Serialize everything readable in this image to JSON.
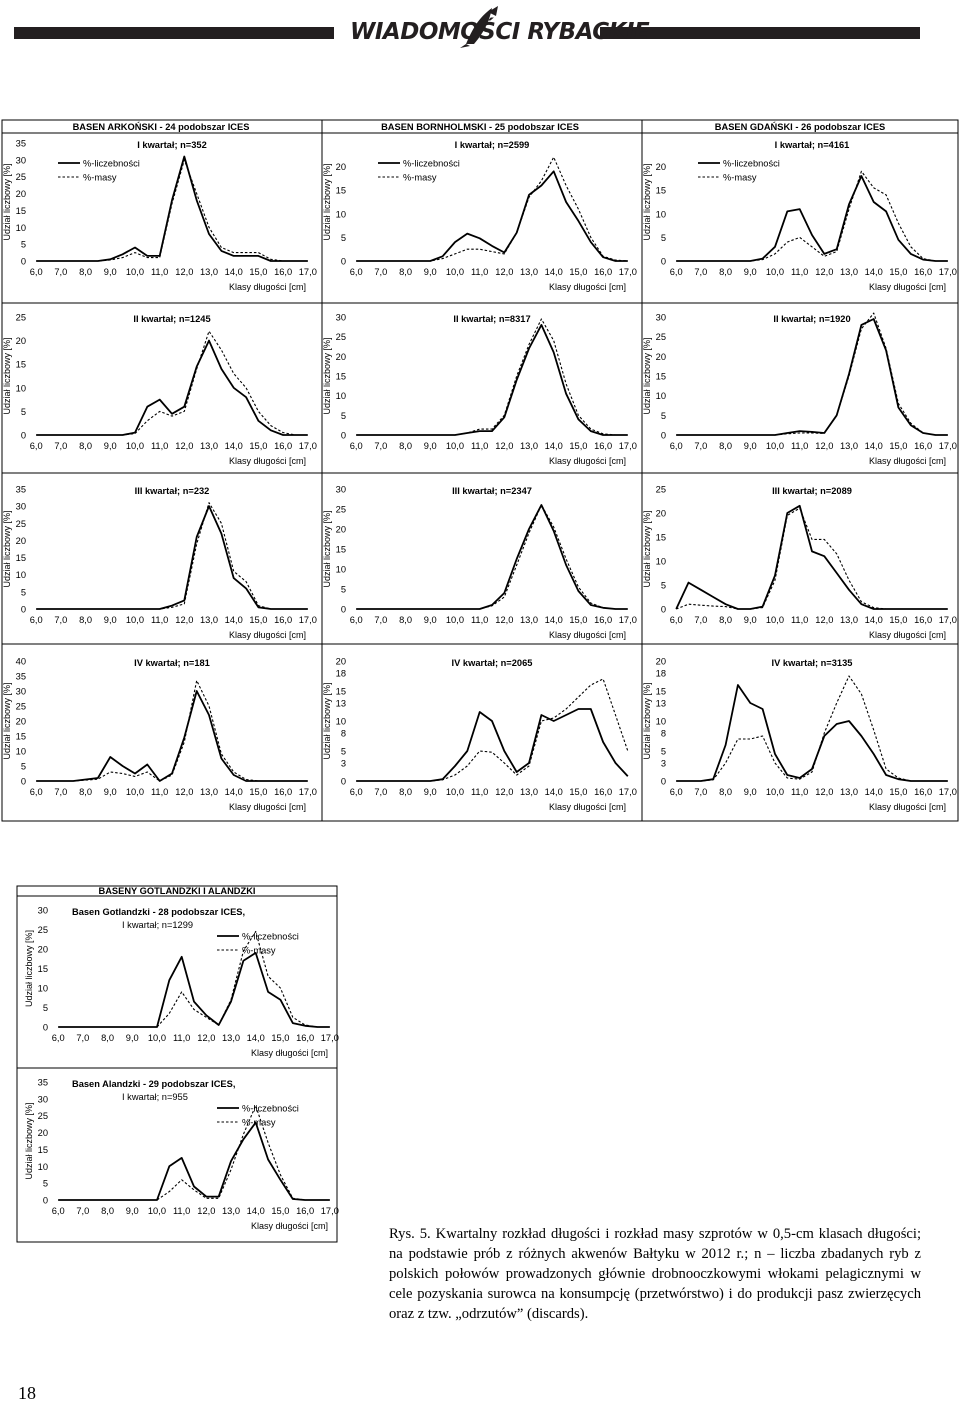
{
  "header": {
    "logo_text": "WIADOMOŚCI RYBACKIE",
    "logo_icon": "fish-icon",
    "bar_color": "#231f20"
  },
  "section_titles": [
    "BASEN ARKOŃSKI - 24 podobszar ICES",
    "BASEN BORNHOLMSKI - 25 podobszar ICES",
    "BASEN GDAŃSKI - 26 podobszar ICES",
    "BASENY GOTLANDZKI I ALANDZKI"
  ],
  "common": {
    "ylabel": "Udział liczbowy [%]",
    "xlabel": "Klasy długości [cm]",
    "x_ticks": [
      "6,0",
      "7,0",
      "8,0",
      "9,0",
      "10,0",
      "11,0",
      "12,0",
      "13,0",
      "14,0",
      "15,0",
      "16,0",
      "17,0"
    ],
    "legend": [
      "%-liczebności",
      "%-masy"
    ]
  },
  "chart_data": [
    {
      "id": "c24q1",
      "type": "line",
      "title": "I kwartał; n=352",
      "yticks": [
        "0",
        "5",
        "10",
        "15",
        "20",
        "25",
        "30",
        "35"
      ],
      "ylim": [
        0,
        35
      ],
      "series": [
        {
          "name": "%-liczebności",
          "style": "solid",
          "values": [
            0,
            0,
            0,
            0,
            0,
            0,
            0.5,
            2,
            4,
            1.5,
            1.5,
            18,
            31,
            18,
            8,
            3,
            1.5,
            1.5,
            1.5,
            0,
            0,
            0,
            0
          ]
        },
        {
          "name": "%-masy",
          "style": "dashed",
          "values": [
            0,
            0,
            0,
            0,
            0,
            0,
            0.3,
            1,
            2.5,
            1,
            1,
            17,
            30,
            20,
            10,
            4,
            2.5,
            2.5,
            2.5,
            0.5,
            0,
            0,
            0
          ]
        }
      ]
    },
    {
      "id": "c25q1",
      "type": "line",
      "title": "I kwartał; n=2599",
      "yticks": [
        "0",
        "5",
        "10",
        "15",
        "20"
      ],
      "ylim": [
        0,
        25
      ],
      "series": [
        {
          "name": "%-liczebności",
          "style": "solid",
          "values": [
            0,
            0,
            0,
            0,
            0,
            0,
            0,
            1,
            4,
            5.8,
            4.8,
            3.2,
            1.8,
            6,
            14,
            16,
            19,
            12.5,
            8.5,
            4,
            0.8,
            0,
            0
          ]
        },
        {
          "name": "%-masy",
          "style": "dashed",
          "values": [
            0,
            0,
            0,
            0,
            0,
            0,
            0,
            0.5,
            1.5,
            2.5,
            2.5,
            2,
            1.5,
            6,
            13.5,
            17,
            22,
            16,
            11,
            5,
            1,
            0.2,
            0
          ]
        }
      ]
    },
    {
      "id": "c26q1",
      "type": "line",
      "title": "I kwartał; n=4161",
      "yticks": [
        "0",
        "5",
        "10",
        "15",
        "20"
      ],
      "ylim": [
        0,
        25
      ],
      "series": [
        {
          "name": "%-liczebności",
          "style": "solid",
          "values": [
            0,
            0,
            0,
            0,
            0,
            0,
            0,
            0.5,
            3,
            10.5,
            11,
            5.5,
            1.5,
            2.5,
            12,
            18,
            12.5,
            10.5,
            4.5,
            1.5,
            0.3,
            0,
            0
          ]
        },
        {
          "name": "%-masy",
          "style": "dashed",
          "values": [
            0,
            0,
            0,
            0,
            0,
            0,
            0,
            0.3,
            1.5,
            4,
            5,
            3,
            1,
            2,
            11,
            19,
            15.5,
            14,
            8,
            3,
            0.5,
            0,
            0
          ]
        }
      ]
    },
    {
      "id": "c24q2",
      "type": "line",
      "title": "II kwartał; n=1245",
      "yticks": [
        "0",
        "5",
        "10",
        "15",
        "20",
        "25"
      ],
      "ylim": [
        0,
        25
      ],
      "series": [
        {
          "name": "%-liczebności",
          "style": "solid",
          "values": [
            0,
            0,
            0,
            0,
            0,
            0,
            0,
            0,
            0.5,
            6,
            7.5,
            4.5,
            6,
            14.5,
            20,
            14,
            10,
            8,
            3,
            1,
            0,
            0,
            0
          ]
        },
        {
          "name": "%-masy",
          "style": "dashed",
          "values": [
            0,
            0,
            0,
            0,
            0,
            0,
            0,
            0,
            0.3,
            3,
            5,
            4,
            5,
            14,
            22,
            18,
            13,
            10,
            5,
            2,
            0.5,
            0,
            0
          ]
        }
      ]
    },
    {
      "id": "c25q2",
      "type": "line",
      "title": "II kwartał; n=8317",
      "yticks": [
        "0",
        "5",
        "10",
        "15",
        "20",
        "25",
        "30"
      ],
      "ylim": [
        0,
        30
      ],
      "series": [
        {
          "name": "%-liczebności",
          "style": "solid",
          "values": [
            0,
            0,
            0,
            0,
            0,
            0,
            0,
            0,
            0,
            0.5,
            1,
            1,
            4.5,
            14,
            22,
            28,
            21,
            10.5,
            4,
            1,
            0,
            0,
            0
          ]
        },
        {
          "name": "%-masy",
          "style": "dashed",
          "values": [
            0,
            0,
            0,
            0,
            0,
            0,
            0,
            0,
            0,
            0.5,
            1.5,
            1.5,
            5,
            15,
            23,
            29.5,
            24,
            13,
            5,
            1.5,
            0.3,
            0,
            0
          ]
        }
      ]
    },
    {
      "id": "c26q2",
      "type": "line",
      "title": "II kwartał; n=1920",
      "yticks": [
        "0",
        "5",
        "10",
        "15",
        "20",
        "25",
        "30"
      ],
      "ylim": [
        0,
        30
      ],
      "series": [
        {
          "name": "%-liczebności",
          "style": "solid",
          "values": [
            0,
            0,
            0,
            0,
            0,
            0,
            0,
            0,
            0,
            0.5,
            1,
            0.8,
            0.5,
            5,
            15.5,
            28,
            29.5,
            21.5,
            7,
            2.5,
            0.5,
            0,
            0
          ]
        },
        {
          "name": "%-masy",
          "style": "dashed",
          "values": [
            0,
            0,
            0,
            0,
            0,
            0,
            0,
            0,
            0,
            0.3,
            0.5,
            0.5,
            0.4,
            5,
            15,
            27,
            31,
            22,
            8,
            3,
            0.5,
            0,
            0
          ]
        }
      ]
    },
    {
      "id": "c24q3",
      "type": "line",
      "title": "III kwartał; n=232",
      "yticks": [
        "0",
        "5",
        "10",
        "15",
        "20",
        "25",
        "30",
        "35"
      ],
      "ylim": [
        0,
        35
      ],
      "series": [
        {
          "name": "%-liczebności",
          "style": "solid",
          "values": [
            0,
            0,
            0,
            0,
            0,
            0,
            0,
            0,
            0,
            0,
            0,
            1,
            2.5,
            21,
            30,
            22,
            9,
            6,
            0.5,
            0,
            0,
            0,
            0
          ]
        },
        {
          "name": "%-masy",
          "style": "dashed",
          "values": [
            0,
            0,
            0,
            0,
            0,
            0,
            0,
            0,
            0,
            0,
            0,
            0.5,
            1.5,
            19,
            31,
            25,
            11,
            8,
            1,
            0,
            0,
            0,
            0
          ]
        }
      ]
    },
    {
      "id": "c25q3",
      "type": "line",
      "title": "III kwartał; n=2347",
      "yticks": [
        "0",
        "5",
        "10",
        "15",
        "20",
        "25",
        "30"
      ],
      "ylim": [
        0,
        30
      ],
      "series": [
        {
          "name": "%-liczebności",
          "style": "solid",
          "values": [
            0,
            0,
            0,
            0,
            0,
            0,
            0,
            0,
            0,
            0,
            0,
            1,
            4,
            12.5,
            20,
            26,
            19.5,
            11,
            4.5,
            1,
            0.3,
            0,
            0
          ]
        },
        {
          "name": "%-masy",
          "style": "dashed",
          "values": [
            0,
            0,
            0,
            0,
            0,
            0,
            0,
            0,
            0,
            0,
            0,
            0.8,
            3,
            11,
            19,
            26,
            20.5,
            12.5,
            5.5,
            1.5,
            0.3,
            0,
            0
          ]
        }
      ]
    },
    {
      "id": "c26q3",
      "type": "line",
      "title": "III kwartał; n=2089",
      "yticks": [
        "0",
        "5",
        "10",
        "15",
        "20",
        "25"
      ],
      "ylim": [
        0,
        25
      ],
      "series": [
        {
          "name": "%-liczebności",
          "style": "solid",
          "values": [
            0,
            5.5,
            4,
            2.5,
            1,
            0,
            0,
            0.5,
            7,
            20,
            21.5,
            12,
            11,
            7.5,
            4,
            1,
            0,
            0,
            0,
            0,
            0,
            0,
            0
          ]
        },
        {
          "name": "%-masy",
          "style": "dashed",
          "values": [
            0,
            1,
            0.8,
            0.6,
            0.5,
            0,
            0,
            0.3,
            6,
            19.5,
            21,
            14.5,
            14.5,
            11.5,
            6,
            1.5,
            0.3,
            0,
            0,
            0,
            0,
            0,
            0
          ]
        }
      ]
    },
    {
      "id": "c24q4",
      "type": "line",
      "title": "IV kwartał; n=181",
      "yticks": [
        "0",
        "5",
        "10",
        "15",
        "20",
        "25",
        "30",
        "35",
        "40"
      ],
      "ylim": [
        0,
        40
      ],
      "series": [
        {
          "name": "%-liczebności",
          "style": "solid",
          "values": [
            0,
            0,
            0,
            0,
            0.5,
            1,
            8,
            5,
            2.5,
            5.5,
            0,
            2.5,
            14.5,
            30,
            22,
            7.5,
            2,
            0,
            0,
            0,
            0,
            0,
            0
          ]
        },
        {
          "name": "%-masy",
          "style": "dashed",
          "values": [
            0,
            0,
            0,
            0,
            0.3,
            0.6,
            3,
            2.5,
            1.5,
            3,
            0,
            2,
            13,
            33.5,
            25,
            9,
            3,
            0.5,
            0,
            0,
            0,
            0,
            0
          ]
        }
      ]
    },
    {
      "id": "c25q4",
      "type": "line",
      "title": "IV kwartał; n=2065",
      "yticks": [
        "0",
        "3",
        "5",
        "8",
        "10",
        "13",
        "15",
        "18",
        "20"
      ],
      "ylim": [
        0,
        20
      ],
      "series": [
        {
          "name": "%-liczebności",
          "style": "solid",
          "values": [
            0,
            0,
            0,
            0,
            0,
            0,
            0,
            0.3,
            2.5,
            5,
            11.5,
            10,
            5,
            1.5,
            3,
            11,
            10,
            11,
            12,
            12,
            6.5,
            3,
            0.8
          ]
        },
        {
          "name": "%-masy",
          "style": "dashed",
          "values": [
            0,
            0,
            0,
            0,
            0,
            0,
            0,
            0.2,
            1,
            2.5,
            5,
            4.8,
            3,
            1,
            2.5,
            10,
            10.5,
            12,
            14,
            16,
            17,
            11,
            5
          ]
        }
      ]
    },
    {
      "id": "c26q4",
      "type": "line",
      "title": "IV kwartał; n=3135",
      "yticks": [
        "0",
        "3",
        "5",
        "8",
        "10",
        "13",
        "15",
        "18",
        "20"
      ],
      "ylim": [
        0,
        20
      ],
      "series": [
        {
          "name": "%-liczebności",
          "style": "solid",
          "values": [
            0,
            0,
            0,
            0.3,
            6,
            16,
            13,
            12,
            4.5,
            1,
            0.5,
            2,
            7.5,
            9.5,
            10,
            7.5,
            4.5,
            1,
            0.3,
            0,
            0,
            0,
            0
          ]
        },
        {
          "name": "%-masy",
          "style": "dashed",
          "values": [
            0,
            0,
            0,
            0.2,
            3,
            7,
            7,
            7.5,
            3,
            0.5,
            0.3,
            1.5,
            8,
            13,
            17.5,
            14.5,
            8.5,
            2,
            0.5,
            0,
            0,
            0,
            0
          ]
        }
      ]
    },
    {
      "id": "c28q1",
      "type": "line",
      "title": "Basen Gotlandzki - 28 podobszar ICES,",
      "title2": "I kwartał; n=1299",
      "yticks": [
        "0",
        "5",
        "10",
        "15",
        "20",
        "25",
        "30"
      ],
      "ylim": [
        0,
        30
      ],
      "series": [
        {
          "name": "%-liczebności",
          "style": "solid",
          "values": [
            0,
            0,
            0,
            0,
            0,
            0,
            0,
            0,
            0,
            12,
            18,
            6.5,
            3,
            0.5,
            6.5,
            17,
            19,
            9,
            7,
            1,
            0.3,
            0,
            0
          ]
        },
        {
          "name": "%-masy",
          "style": "dashed",
          "values": [
            0,
            0,
            0,
            0,
            0,
            0,
            0,
            0,
            0,
            3.5,
            9,
            4.5,
            2.5,
            0.5,
            7,
            19.5,
            24.5,
            13,
            10,
            2.5,
            0.5,
            0,
            0
          ]
        }
      ]
    },
    {
      "id": "c29q1",
      "type": "line",
      "title": "Basen Alandzki - 29 podobszar ICES,",
      "title2": "I kwartał; n=955",
      "yticks": [
        "0",
        "5",
        "10",
        "15",
        "20",
        "25",
        "30",
        "35"
      ],
      "ylim": [
        0,
        35
      ],
      "series": [
        {
          "name": "%-liczebności",
          "style": "solid",
          "values": [
            0,
            0,
            0,
            0,
            0,
            0,
            0,
            0,
            0,
            10,
            12.5,
            4,
            1,
            1,
            11.5,
            18,
            23,
            12,
            6,
            0.3,
            0,
            0,
            0
          ]
        },
        {
          "name": "%-masy",
          "style": "dashed",
          "values": [
            0,
            0,
            0,
            0,
            0,
            0,
            0,
            0,
            0,
            2.5,
            6,
            3,
            0.5,
            0.5,
            9,
            19.5,
            28,
            17,
            7.5,
            0.5,
            0,
            0,
            0
          ]
        }
      ]
    }
  ],
  "caption": "Rys. 5. Kwartalny rozkład długości i rozkład masy szprotów w 0,5-cm klasach długości; na podstawie prób z różnych akwenów Bałtyku w 2012 r.; n – liczba zbadanych ryb z polskich połowów prowadzonych głównie drobnooczkowymi włokami pelagicznymi w cele pozyskania surowca na konsumpcję (przetwórstwo) i do produkcji pasz zwierzęcych oraz z tzw. „odrzutów” (discards).",
  "page_number": "18"
}
